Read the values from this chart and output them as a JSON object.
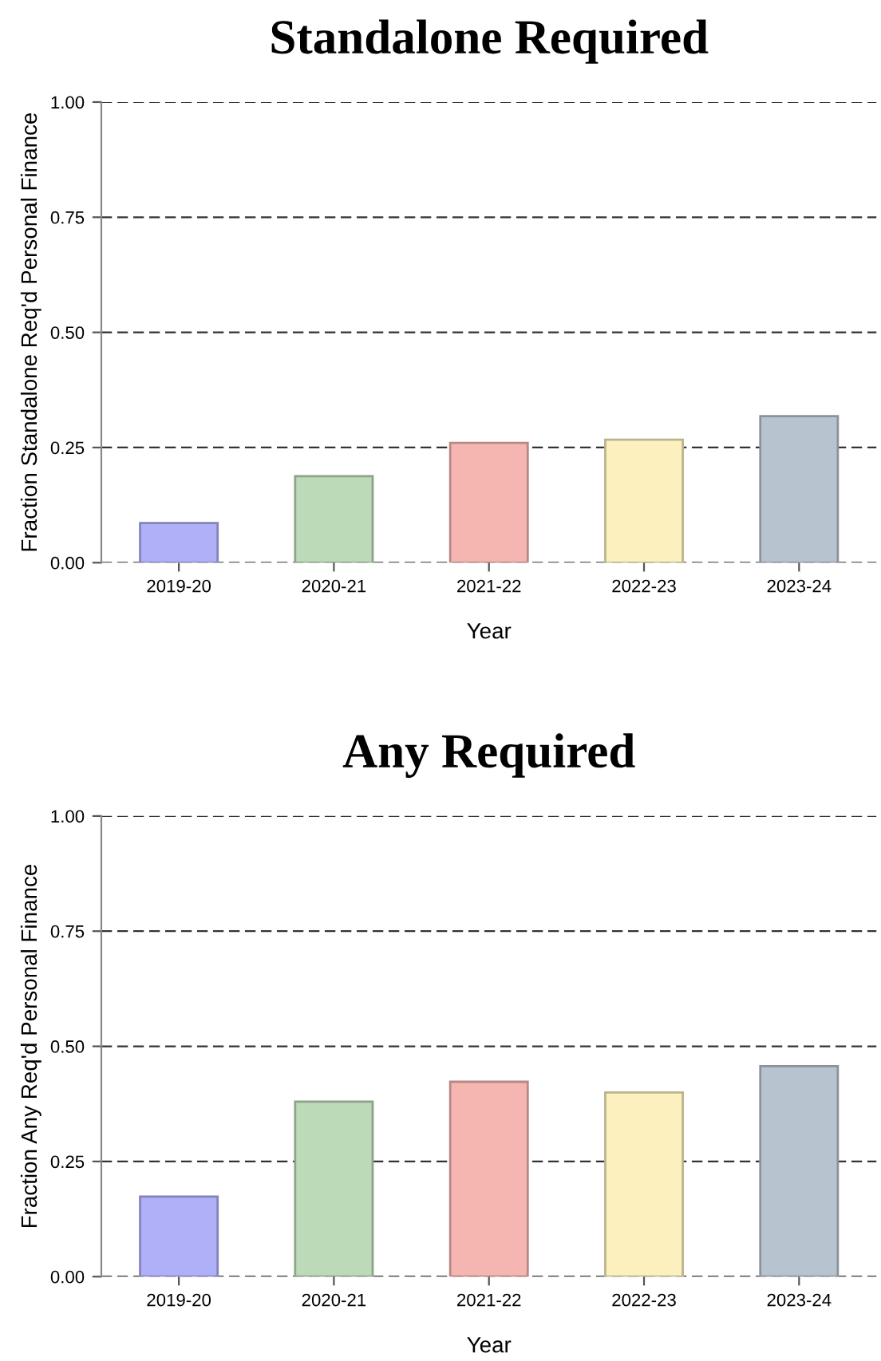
{
  "chart_data": [
    {
      "type": "bar",
      "title": "Standalone Required",
      "xlabel": "Year",
      "ylabel": "Fraction Standalone Req'd Personal Finance",
      "categories": [
        "2019-20",
        "2020-21",
        "2021-22",
        "2022-23",
        "2023-24"
      ],
      "values": [
        0.086,
        0.188,
        0.26,
        0.267,
        0.318
      ],
      "colors": [
        "#b0b0f8",
        "#bcd9b8",
        "#f5b5b0",
        "#fbf0be",
        "#b8c3d0"
      ],
      "ylim": [
        0,
        1
      ],
      "yticks": [
        {
          "value": 0,
          "label": "0.00"
        },
        {
          "value": 0.25,
          "label": "0.25"
        },
        {
          "value": 0.5,
          "label": "0.50"
        },
        {
          "value": 0.75,
          "label": "0.75"
        },
        {
          "value": 1,
          "label": "1.00"
        }
      ],
      "grid": "y"
    },
    {
      "type": "bar",
      "title": "Any Required",
      "xlabel": "Year",
      "ylabel": "Fraction Any Req'd Personal Finance",
      "categories": [
        "2019-20",
        "2020-21",
        "2021-22",
        "2022-23",
        "2023-24"
      ],
      "values": [
        0.174,
        0.38,
        0.423,
        0.4,
        0.457
      ],
      "colors": [
        "#b0b0f8",
        "#bcd9b8",
        "#f5b5b0",
        "#fbf0be",
        "#b8c3d0"
      ],
      "ylim": [
        0,
        1
      ],
      "yticks": [
        {
          "value": 0,
          "label": "0.00"
        },
        {
          "value": 0.25,
          "label": "0.25"
        },
        {
          "value": 0.5,
          "label": "0.50"
        },
        {
          "value": 0.75,
          "label": "0.75"
        },
        {
          "value": 1,
          "label": "1.00"
        }
      ],
      "grid": "y"
    }
  ]
}
